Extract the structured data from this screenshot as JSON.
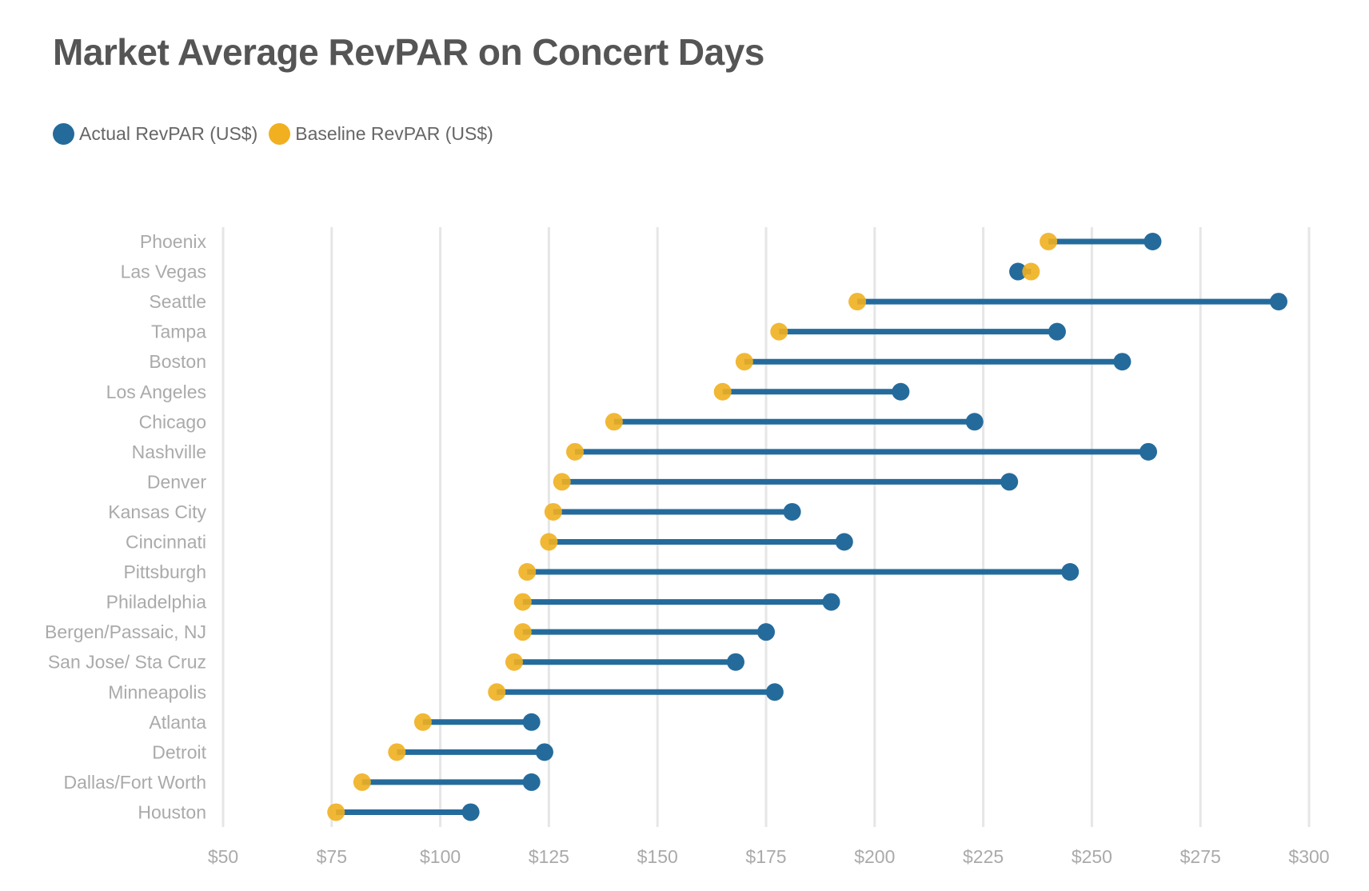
{
  "title": "Market Average RevPAR on Concert Days",
  "colors": {
    "actual": "#246b9c",
    "baseline": "#f0b020",
    "grid": "#e6e6e6",
    "axis_text": "#aaaaaa"
  },
  "legend": [
    {
      "label": "Actual RevPAR (US$)",
      "color": "#246b9c"
    },
    {
      "label": "Baseline RevPAR (US$)",
      "color": "#f0b020"
    }
  ],
  "chart_data": {
    "type": "dumbbell",
    "title": "Market Average RevPAR on Concert Days",
    "xlim": [
      50,
      300
    ],
    "x_ticks": [
      50,
      75,
      100,
      125,
      150,
      175,
      200,
      225,
      250,
      275,
      300
    ],
    "x_tick_labels": [
      "$50",
      "$75",
      "$100",
      "$125",
      "$150",
      "$175",
      "$200",
      "$225",
      "$250",
      "$275",
      "$300"
    ],
    "grid": true,
    "legend_position": "top-left",
    "categories": [
      "Phoenix",
      "Las Vegas",
      "Seattle",
      "Tampa",
      "Boston",
      "Los Angeles",
      "Chicago",
      "Nashville",
      "Denver",
      "Kansas City",
      "Cincinnati",
      "Pittsburgh",
      "Philadelphia",
      "Bergen/Passaic, NJ",
      "San Jose/ Sta Cruz",
      "Minneapolis",
      "Atlanta",
      "Detroit",
      "Dallas/Fort Worth",
      "Houston"
    ],
    "series": [
      {
        "name": "Actual RevPAR (US$)",
        "values": [
          264,
          233,
          293,
          242,
          257,
          206,
          223,
          263,
          231,
          181,
          193,
          245,
          190,
          175,
          168,
          177,
          121,
          124,
          121,
          107
        ]
      },
      {
        "name": "Baseline RevPAR (US$)",
        "values": [
          240,
          236,
          196,
          178,
          170,
          165,
          140,
          131,
          128,
          126,
          125,
          120,
          119,
          119,
          117,
          113,
          96,
          90,
          82,
          76
        ]
      }
    ]
  }
}
